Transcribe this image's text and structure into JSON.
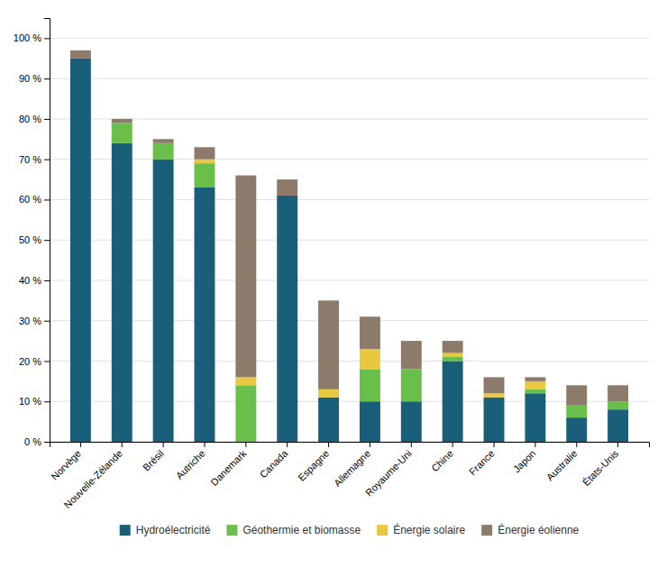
{
  "chart_data": {
    "type": "bar",
    "stacked": true,
    "categories": [
      "Norvège",
      "Nouvelle-Zélande",
      "Brésil",
      "Autriche",
      "Danemark",
      "Canada",
      "Espagne",
      "Allemagne",
      "Royaume-Uni",
      "Chine",
      "France",
      "Japon",
      "Australie",
      "États-Unis"
    ],
    "series": [
      {
        "name": "Hydroélectricité",
        "color": "#1a5f7a",
        "values": [
          95,
          74,
          70,
          63,
          0,
          61,
          11,
          10,
          10,
          20,
          11,
          12,
          6,
          8
        ]
      },
      {
        "name": "Géothermie et biomasse",
        "color": "#6abf4b",
        "values": [
          0,
          5,
          4,
          6,
          14,
          0,
          0,
          8,
          8,
          1,
          0,
          1,
          3,
          2
        ]
      },
      {
        "name": "Énergie solaire",
        "color": "#e8c840",
        "values": [
          0,
          0,
          0,
          1,
          2,
          0,
          2,
          5,
          0,
          1,
          1,
          2,
          0,
          0
        ]
      },
      {
        "name": "Énergie éolienne",
        "color": "#8c7b6b",
        "values": [
          2,
          1,
          1,
          3,
          50,
          4,
          22,
          8,
          7,
          3,
          4,
          1,
          5,
          4
        ]
      }
    ],
    "ylim": [
      0,
      105
    ],
    "yticks": [
      {
        "value": 0,
        "label": "0 %"
      },
      {
        "value": 10,
        "label": "10 %"
      },
      {
        "value": 20,
        "label": "20 %"
      },
      {
        "value": 30,
        "label": "30 %"
      },
      {
        "value": 40,
        "label": "40 %"
      },
      {
        "value": 50,
        "label": "50 %"
      },
      {
        "value": 60,
        "label": "60 %"
      },
      {
        "value": 70,
        "label": "70 %"
      },
      {
        "value": 80,
        "label": "80 %"
      },
      {
        "value": 90,
        "label": "90 %"
      },
      {
        "value": 100,
        "label": "100 %"
      }
    ],
    "grid": true,
    "legend": "bottom"
  }
}
